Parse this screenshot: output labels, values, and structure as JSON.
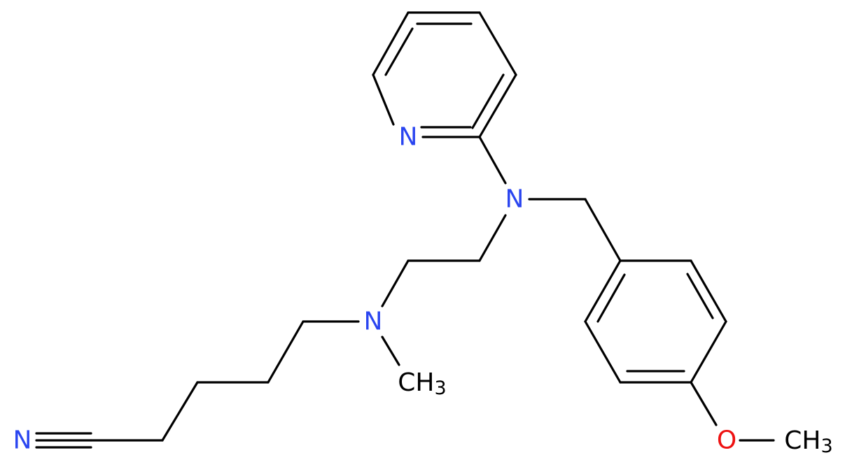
{
  "atoms": [
    {
      "label": "N"
    },
    {
      "label": "N"
    },
    {
      "label": "N"
    },
    {
      "label": "CH",
      "subscript": "3"
    },
    {
      "label": "N"
    },
    {
      "label": "O"
    },
    {
      "label": "CH",
      "subscript": "3"
    }
  ]
}
